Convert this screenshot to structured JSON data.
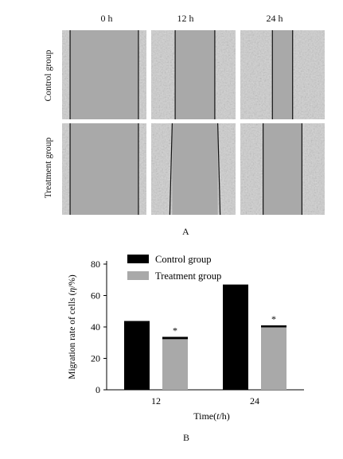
{
  "figure": {
    "time_labels": [
      "0  h",
      "12  h",
      "24  h"
    ],
    "row_labels": [
      "Control group",
      "Treatment group"
    ],
    "panel_a_label": "A",
    "panel_b_label": "B"
  },
  "wound_images": {
    "background_color": "#a9a9a9",
    "cell_color": "#cfcfcf",
    "line_color": "#111111",
    "gap_fraction": [
      [
        0.81,
        0.47,
        0.24
      ],
      [
        0.81,
        0.54,
        0.46
      ]
    ]
  },
  "chart_data": {
    "type": "bar",
    "categories": [
      "12",
      "24"
    ],
    "series": [
      {
        "name": "Control group",
        "values": [
          42,
          65.5
        ],
        "errors": [
          1.8,
          1.5
        ],
        "color": "#000000"
      },
      {
        "name": "Treatment group",
        "values": [
          32.5,
          40
        ],
        "errors": [
          1.2,
          1.0
        ],
        "color": "#a9a9a9",
        "significance": [
          "*",
          "*"
        ]
      }
    ],
    "ylabel_parts": [
      "Migration rate of cells (",
      "η",
      "/%)"
    ],
    "xlabel_parts": [
      "Time(",
      "t",
      "/h)"
    ],
    "ylim": [
      0,
      80
    ],
    "yticks": [
      0,
      20,
      40,
      60,
      80
    ],
    "legend_position": "top-left"
  }
}
